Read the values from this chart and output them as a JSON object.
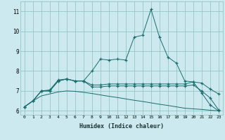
{
  "xlabel": "Humidex (Indice chaleur)",
  "x": [
    0,
    1,
    2,
    3,
    4,
    5,
    6,
    7,
    8,
    9,
    10,
    11,
    12,
    13,
    14,
    15,
    16,
    17,
    18,
    19,
    20,
    21,
    22,
    23
  ],
  "peak_line": [
    6.2,
    6.5,
    7.0,
    7.0,
    7.5,
    7.6,
    7.5,
    7.5,
    8.0,
    8.6,
    8.55,
    8.6,
    8.55,
    9.7,
    9.8,
    11.1,
    9.7,
    8.7,
    8.4,
    7.5,
    7.45,
    6.9,
    6.3,
    6.0
  ],
  "upper_line": [
    6.2,
    6.5,
    7.0,
    7.05,
    7.55,
    7.6,
    7.5,
    7.5,
    7.3,
    7.3,
    7.35,
    7.35,
    7.35,
    7.35,
    7.35,
    7.35,
    7.35,
    7.35,
    7.35,
    7.35,
    7.45,
    7.4,
    7.1,
    6.85
  ],
  "mid_line": [
    6.2,
    6.5,
    7.0,
    7.0,
    7.5,
    7.6,
    7.5,
    7.5,
    7.2,
    7.2,
    7.25,
    7.25,
    7.25,
    7.25,
    7.25,
    7.25,
    7.25,
    7.25,
    7.25,
    7.25,
    7.3,
    7.0,
    6.65,
    6.05
  ],
  "lower_line": [
    6.2,
    6.5,
    6.75,
    6.85,
    6.95,
    7.0,
    6.98,
    6.93,
    6.87,
    6.8,
    6.73,
    6.67,
    6.6,
    6.53,
    6.47,
    6.4,
    6.33,
    6.27,
    6.2,
    6.13,
    6.1,
    6.07,
    6.03,
    6.0
  ],
  "bg_color": "#cce9f0",
  "grid_color": "#8bbfbe",
  "line_color": "#1a6b6b",
  "ylim": [
    5.8,
    11.5
  ],
  "yticks": [
    6,
    7,
    8,
    9,
    10,
    11
  ],
  "xticks": [
    0,
    1,
    2,
    3,
    4,
    5,
    6,
    7,
    8,
    9,
    10,
    11,
    12,
    13,
    14,
    15,
    16,
    17,
    18,
    19,
    20,
    21,
    22,
    23
  ]
}
